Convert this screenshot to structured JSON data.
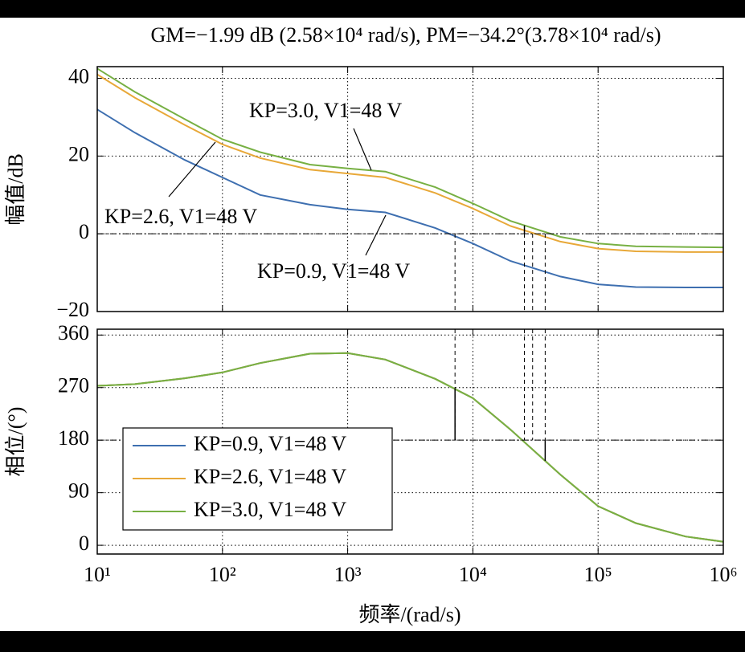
{
  "chart_data": [
    {
      "type": "line",
      "title": "GM=−1.99 dB (2.58×10⁴ rad/s), PM=−34.2°(3.78×10⁴ rad/s)",
      "ylabel": "幅值/dB",
      "xscale": "log",
      "xlim": [
        10,
        1000000
      ],
      "x": [
        10,
        20,
        50,
        100,
        200,
        500,
        1000,
        2000,
        5000,
        10000,
        20000,
        50000,
        100000,
        200000,
        500000,
        1000000
      ],
      "series": [
        {
          "color": "#3e6fb0",
          "values": [
            32,
            26,
            19,
            14.5,
            10,
            7.5,
            6.3,
            5.5,
            1.5,
            -2.5,
            -7,
            -11,
            -13,
            -13.7,
            -13.8,
            -13.8
          ]
        },
        {
          "color": "#e8a838",
          "values": [
            41,
            35,
            28,
            23,
            19.5,
            16.5,
            15.5,
            14.5,
            10.5,
            6.5,
            2,
            -2,
            -3.8,
            -4.5,
            -4.7,
            -4.7
          ]
        },
        {
          "color": "#77b043",
          "values": [
            42.5,
            36.5,
            29.5,
            24.3,
            21,
            17.8,
            16.8,
            16,
            12,
            7.8,
            3.3,
            -0.8,
            -2.5,
            -3.2,
            -3.4,
            -3.5
          ]
        }
      ],
      "ylim": [
        -20,
        43
      ],
      "yticks": [
        {
          "value": -20,
          "label": "−20"
        },
        0,
        20,
        40
      ],
      "grid": true,
      "annotations": [
        "KP=3.0, V1=48 V",
        "KP=2.6, V1=48 V",
        "KP=0.9, V1=48 V"
      ],
      "gain_crossovers": [
        7200,
        30000,
        37800
      ],
      "phase_crossover": 25800
    },
    {
      "type": "line",
      "ylabel": "相位/(°)",
      "xlabel": "频率/(rad/s)",
      "xscale": "log",
      "xlim": [
        10,
        1000000
      ],
      "xticks": [
        {
          "value": 10,
          "label": "10¹"
        },
        {
          "value": 100,
          "label": "10²"
        },
        {
          "value": 1000,
          "label": "10³"
        },
        {
          "value": 10000,
          "label": "10⁴"
        },
        {
          "value": 100000,
          "label": "10⁵"
        },
        {
          "value": 1000000,
          "label": "10⁶"
        }
      ],
      "x": [
        10,
        20,
        50,
        100,
        200,
        500,
        1000,
        2000,
        5000,
        10000,
        20000,
        50000,
        100000,
        200000,
        500000,
        1000000
      ],
      "series": [
        {
          "name": "KP=0.9, V1=48 V",
          "color": "#3e6fb0",
          "values": [
            273,
            276,
            286,
            296,
            312,
            328,
            329,
            318,
            285,
            252,
            198,
            121,
            67,
            38,
            15,
            6
          ]
        },
        {
          "name": "KP=2.6, V1=48 V",
          "color": "#e8a838",
          "values": [
            273,
            276,
            286,
            296,
            312,
            328,
            329,
            318,
            285,
            252,
            198,
            121,
            67,
            38,
            15,
            6
          ]
        },
        {
          "name": "KP=3.0, V1=48 V",
          "color": "#77b043",
          "values": [
            273,
            276,
            286,
            296,
            312,
            328,
            329,
            318,
            285,
            252,
            198,
            121,
            67,
            38,
            15,
            6
          ]
        }
      ],
      "ylim": [
        -15,
        370
      ],
      "yticks": [
        0,
        90,
        180,
        270,
        360
      ],
      "grid": true,
      "legend": "lower left"
    }
  ]
}
